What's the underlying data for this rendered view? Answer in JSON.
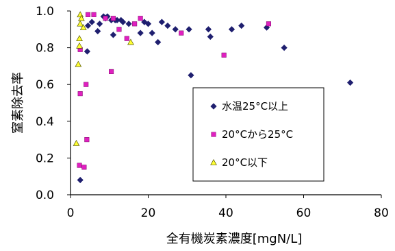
{
  "chart_data": {
    "type": "scatter",
    "title": "",
    "xlabel": "全有機炭素濃度[mgN/L]",
    "ylabel": "窒素除去率",
    "xlim": [
      0,
      80
    ],
    "ylim": [
      0.0,
      1.0
    ],
    "x_ticks": [
      "0",
      "20",
      "40",
      "60",
      "80"
    ],
    "y_ticks": [
      "0.0",
      "0.2",
      "0.4",
      "0.6",
      "0.8",
      "1.0"
    ],
    "grid": false,
    "legend_position": "center-right",
    "series": [
      {
        "name": "水温25°C以上",
        "marker": "diamond",
        "color": "#1F1F6F",
        "points": [
          [
            2.5,
            0.08
          ],
          [
            4.3,
            0.78
          ],
          [
            4.5,
            0.92
          ],
          [
            5.5,
            0.94
          ],
          [
            7.0,
            0.89
          ],
          [
            7.5,
            0.93
          ],
          [
            8.5,
            0.97
          ],
          [
            9.0,
            0.96
          ],
          [
            9.5,
            0.97
          ],
          [
            10.5,
            0.95
          ],
          [
            11.5,
            0.95
          ],
          [
            12.0,
            0.95
          ],
          [
            13.0,
            0.95
          ],
          [
            13.5,
            0.94
          ],
          [
            15.0,
            0.93
          ],
          [
            11.0,
            0.87
          ],
          [
            18.0,
            0.88
          ],
          [
            19.0,
            0.94
          ],
          [
            20.0,
            0.93
          ],
          [
            21.0,
            0.88
          ],
          [
            22.5,
            0.83
          ],
          [
            23.5,
            0.94
          ],
          [
            25.0,
            0.92
          ],
          [
            27.0,
            0.9
          ],
          [
            30.5,
            0.9
          ],
          [
            31.0,
            0.65
          ],
          [
            35.5,
            0.9
          ],
          [
            36.0,
            0.86
          ],
          [
            41.5,
            0.9
          ],
          [
            44.0,
            0.92
          ],
          [
            50.5,
            0.91
          ],
          [
            55.0,
            0.8
          ],
          [
            72.0,
            0.61
          ]
        ]
      },
      {
        "name": "20°Cから25°C",
        "marker": "square",
        "color": "#E020C0",
        "points": [
          [
            2.3,
            0.16
          ],
          [
            3.5,
            0.15
          ],
          [
            4.2,
            0.3
          ],
          [
            2.5,
            0.55
          ],
          [
            4.0,
            0.6
          ],
          [
            2.5,
            0.79
          ],
          [
            4.5,
            0.98
          ],
          [
            6.0,
            0.98
          ],
          [
            9.0,
            0.96
          ],
          [
            10.5,
            0.67
          ],
          [
            11.0,
            0.96
          ],
          [
            12.5,
            0.9
          ],
          [
            14.5,
            0.85
          ],
          [
            16.5,
            0.93
          ],
          [
            18.0,
            0.96
          ],
          [
            28.5,
            0.88
          ],
          [
            39.5,
            0.76
          ],
          [
            51.0,
            0.93
          ]
        ]
      },
      {
        "name": "20°C以下",
        "marker": "triangle",
        "color": "#FFFF33",
        "points": [
          [
            1.5,
            0.28
          ],
          [
            2.0,
            0.71
          ],
          [
            2.3,
            0.81
          ],
          [
            2.3,
            0.85
          ],
          [
            2.5,
            0.93
          ],
          [
            2.5,
            0.98
          ],
          [
            2.8,
            0.96
          ],
          [
            3.3,
            0.91
          ],
          [
            15.5,
            0.83
          ]
        ]
      }
    ]
  }
}
